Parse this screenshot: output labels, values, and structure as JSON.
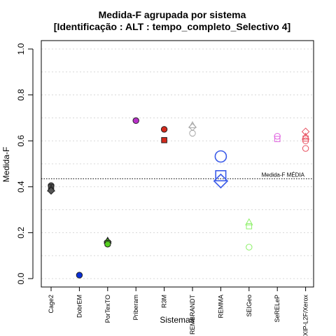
{
  "chart_data": {
    "type": "scatter",
    "title": "Medida-F agrupada por sistema",
    "subtitle": "[Identificação : ALT : tempo_completo_Selectivo 4]",
    "xlabel": "Sistemas",
    "ylabel": "Medida-F",
    "ylim": [
      0,
      1
    ],
    "yticks": [
      "0.0",
      "0.2",
      "0.4",
      "0.6",
      "0.8",
      "1.0"
    ],
    "grid": true,
    "categories": [
      "Cage2",
      "DobrEM",
      "PorTexTO",
      "Priberam",
      "R3M",
      "REMBRANDT",
      "REMMA",
      "SEIGeo",
      "SeRELeP",
      "XIP-L2F/Xerox"
    ],
    "reference_line": {
      "label": "Medida-F MÉDIA",
      "value": 0.435
    },
    "series": [
      {
        "category": "Cage2",
        "color": "#555555",
        "points": [
          {
            "y": 0.405,
            "shape": "circle",
            "filled": true
          },
          {
            "y": 0.398,
            "shape": "square",
            "filled": true
          },
          {
            "y": 0.392,
            "shape": "triangle",
            "filled": true
          },
          {
            "y": 0.383,
            "shape": "diamond",
            "filled": true
          }
        ]
      },
      {
        "category": "DobrEM",
        "color": "#0a2fd8",
        "points": [
          {
            "y": 0.015,
            "shape": "circle",
            "filled": true
          }
        ]
      },
      {
        "category": "PorTexTO",
        "color": "#55d020",
        "points": [
          {
            "y": 0.165,
            "shape": "triangle",
            "filled": true
          },
          {
            "y": 0.16,
            "shape": "diamond",
            "filled": true
          },
          {
            "y": 0.155,
            "shape": "square",
            "filled": true
          },
          {
            "y": 0.15,
            "shape": "circle",
            "filled": true
          }
        ]
      },
      {
        "category": "Priberam",
        "color": "#b830c8",
        "points": [
          {
            "y": 0.688,
            "shape": "circle",
            "filled": true
          }
        ]
      },
      {
        "category": "R3M",
        "color": "#d42a1c",
        "points": [
          {
            "y": 0.65,
            "shape": "circle",
            "filled": true
          },
          {
            "y": 0.603,
            "shape": "square",
            "filled": true
          }
        ]
      },
      {
        "category": "REMBRANDT",
        "color": "#a8a8a8",
        "points": [
          {
            "y": 0.668,
            "shape": "triangle",
            "filled": false
          },
          {
            "y": 0.66,
            "shape": "diamond",
            "filled": false
          },
          {
            "y": 0.633,
            "shape": "circle",
            "filled": false
          }
        ]
      },
      {
        "category": "REMMA",
        "color": "#3a5ae8",
        "points": [
          {
            "y": 0.532,
            "shape": "circle",
            "filled": false,
            "size": "large"
          },
          {
            "y": 0.448,
            "shape": "square",
            "filled": false,
            "size": "large"
          },
          {
            "y": 0.425,
            "shape": "diamond",
            "filled": false,
            "size": "large"
          }
        ]
      },
      {
        "category": "SEIGeo",
        "color": "#8ef06a",
        "points": [
          {
            "y": 0.245,
            "shape": "triangle",
            "filled": false
          },
          {
            "y": 0.228,
            "shape": "square",
            "filled": false
          },
          {
            "y": 0.137,
            "shape": "circle",
            "filled": false
          }
        ]
      },
      {
        "category": "SeRELeP",
        "color": "#e060e0",
        "points": [
          {
            "y": 0.62,
            "shape": "circle",
            "filled": false
          },
          {
            "y": 0.608,
            "shape": "square",
            "filled": false
          }
        ]
      },
      {
        "category": "XIP-L2F/Xerox",
        "color": "#e85060",
        "points": [
          {
            "y": 0.64,
            "shape": "diamond",
            "filled": false
          },
          {
            "y": 0.618,
            "shape": "triangle",
            "filled": false
          },
          {
            "y": 0.61,
            "shape": "square",
            "filled": false
          },
          {
            "y": 0.6,
            "shape": "circle",
            "filled": false
          },
          {
            "y": 0.567,
            "shape": "circle",
            "filled": false
          }
        ]
      }
    ]
  }
}
